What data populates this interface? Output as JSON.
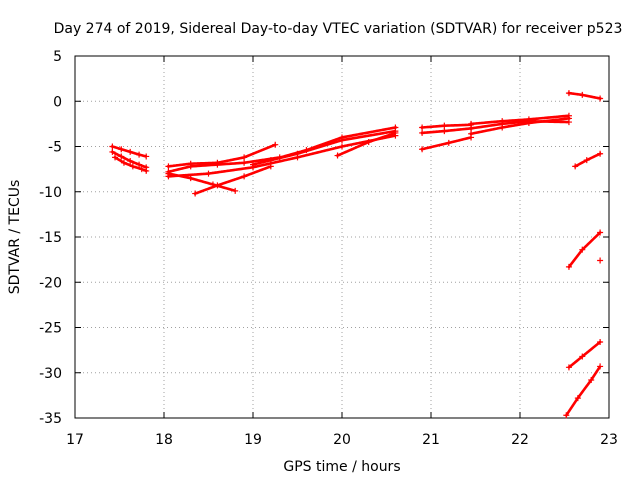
{
  "chart_data": {
    "type": "scatter",
    "title": "Day 274 of 2019, Sidereal Day-to-day VTEC variation (SDTVAR) for receiver p523",
    "xlabel": "GPS time / hours",
    "ylabel": "SDTVAR / TECUs",
    "xlim": [
      17,
      23
    ],
    "ylim": [
      -35,
      5
    ],
    "xticks": [
      17,
      18,
      19,
      20,
      21,
      22,
      23
    ],
    "yticks": [
      5,
      0,
      -5,
      -10,
      -15,
      -20,
      -25,
      -30,
      -35
    ],
    "grid": true,
    "marker": "plus",
    "color": "#ff0000",
    "series": [
      {
        "x": [
          17.42,
          17.52,
          17.62,
          17.72,
          17.8
        ],
        "y": [
          -5.0,
          -5.3,
          -5.6,
          -5.9,
          -6.1
        ]
      },
      {
        "x": [
          17.42,
          17.52,
          17.62,
          17.72,
          17.8
        ],
        "y": [
          -5.6,
          -6.1,
          -6.6,
          -7.0,
          -7.3
        ]
      },
      {
        "x": [
          17.45,
          17.55,
          17.65,
          17.75,
          17.8
        ],
        "y": [
          -6.2,
          -6.8,
          -7.2,
          -7.5,
          -7.7
        ]
      },
      {
        "x": [
          18.05,
          18.3,
          18.6,
          18.9,
          19.25
        ],
        "y": [
          -7.2,
          -6.9,
          -6.8,
          -6.2,
          -4.8
        ]
      },
      {
        "x": [
          18.05,
          18.3,
          18.6,
          18.9,
          19.3
        ],
        "y": [
          -7.8,
          -7.2,
          -7.0,
          -6.8,
          -6.2
        ]
      },
      {
        "x": [
          18.05,
          18.3,
          18.55,
          18.8
        ],
        "y": [
          -8.0,
          -8.5,
          -9.2,
          -9.9
        ]
      },
      {
        "x": [
          18.35,
          18.6,
          18.9,
          19.2
        ],
        "y": [
          -10.2,
          -9.3,
          -8.3,
          -7.2
        ]
      },
      {
        "x": [
          18.05,
          18.5,
          19.0,
          19.5,
          20.0,
          20.6
        ],
        "y": [
          -8.3,
          -8.0,
          -7.3,
          -6.2,
          -5.0,
          -3.8
        ]
      },
      {
        "x": [
          19.0,
          19.5,
          20.0,
          20.6
        ],
        "y": [
          -7.0,
          -5.8,
          -4.3,
          -3.3
        ]
      },
      {
        "x": [
          19.2,
          19.6,
          20.0,
          20.6
        ],
        "y": [
          -6.5,
          -5.4,
          -4.0,
          -2.9
        ]
      },
      {
        "x": [
          19.95,
          20.3,
          20.6
        ],
        "y": [
          -6.0,
          -4.5,
          -3.5
        ]
      },
      {
        "x": [
          20.9,
          21.2,
          21.45
        ],
        "y": [
          -5.3,
          -4.6,
          -4.0
        ]
      },
      {
        "x": [
          20.9,
          21.15,
          21.45
        ],
        "y": [
          -3.5,
          -3.3,
          -3.0
        ]
      },
      {
        "x": [
          20.9,
          21.15,
          21.45
        ],
        "y": [
          -2.9,
          -2.7,
          -2.6
        ]
      },
      {
        "x": [
          21.45,
          21.8,
          22.1,
          22.55
        ],
        "y": [
          -3.6,
          -2.9,
          -2.4,
          -1.9
        ]
      },
      {
        "x": [
          21.45,
          21.8,
          22.1,
          22.55
        ],
        "y": [
          -3.0,
          -2.5,
          -2.2,
          -2.3
        ]
      },
      {
        "x": [
          21.45,
          21.8,
          22.1,
          22.55
        ],
        "y": [
          -2.5,
          -2.2,
          -2.0,
          -1.6
        ]
      },
      {
        "x": [
          22.55,
          22.7,
          22.9
        ],
        "y": [
          0.9,
          0.7,
          0.3
        ]
      },
      {
        "x": [
          22.62,
          22.75,
          22.9
        ],
        "y": [
          -7.2,
          -6.5,
          -5.8
        ]
      },
      {
        "x": [
          22.55,
          22.7,
          22.9
        ],
        "y": [
          -18.3,
          -16.4,
          -14.5
        ]
      },
      {
        "x": [
          22.9
        ],
        "y": [
          -17.6
        ]
      },
      {
        "x": [
          22.55,
          22.7,
          22.9
        ],
        "y": [
          -29.4,
          -28.2,
          -26.6
        ]
      },
      {
        "x": [
          22.52,
          22.65,
          22.8,
          22.9
        ],
        "y": [
          -34.7,
          -32.8,
          -30.8,
          -29.3
        ]
      }
    ]
  }
}
